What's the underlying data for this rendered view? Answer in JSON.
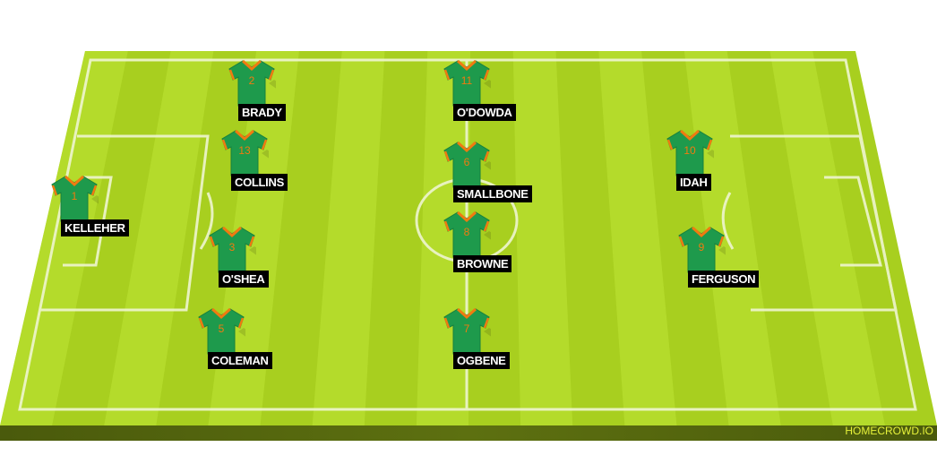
{
  "colors": {
    "pitch_light": "#b6dc2a",
    "pitch_dark": "#a4c91f",
    "shirt": "#1e9a4c",
    "trim": "#f07a10",
    "label_bg": "#000000"
  },
  "brand": "HOMECROWD.IO",
  "players": [
    {
      "number": "2",
      "name": "BRADY"
    },
    {
      "number": "11",
      "name": "O'DOWDA"
    },
    {
      "number": "13",
      "name": "COLLINS"
    },
    {
      "number": "6",
      "name": "SMALLBONE"
    },
    {
      "number": "10",
      "name": "IDAH"
    },
    {
      "number": "1",
      "name": "KELLEHER"
    },
    {
      "number": "8",
      "name": "BROWNE"
    },
    {
      "number": "3",
      "name": "O'SHEA"
    },
    {
      "number": "9",
      "name": "FERGUSON"
    },
    {
      "number": "5",
      "name": "COLEMAN"
    },
    {
      "number": "7",
      "name": "OGBENE"
    }
  ]
}
